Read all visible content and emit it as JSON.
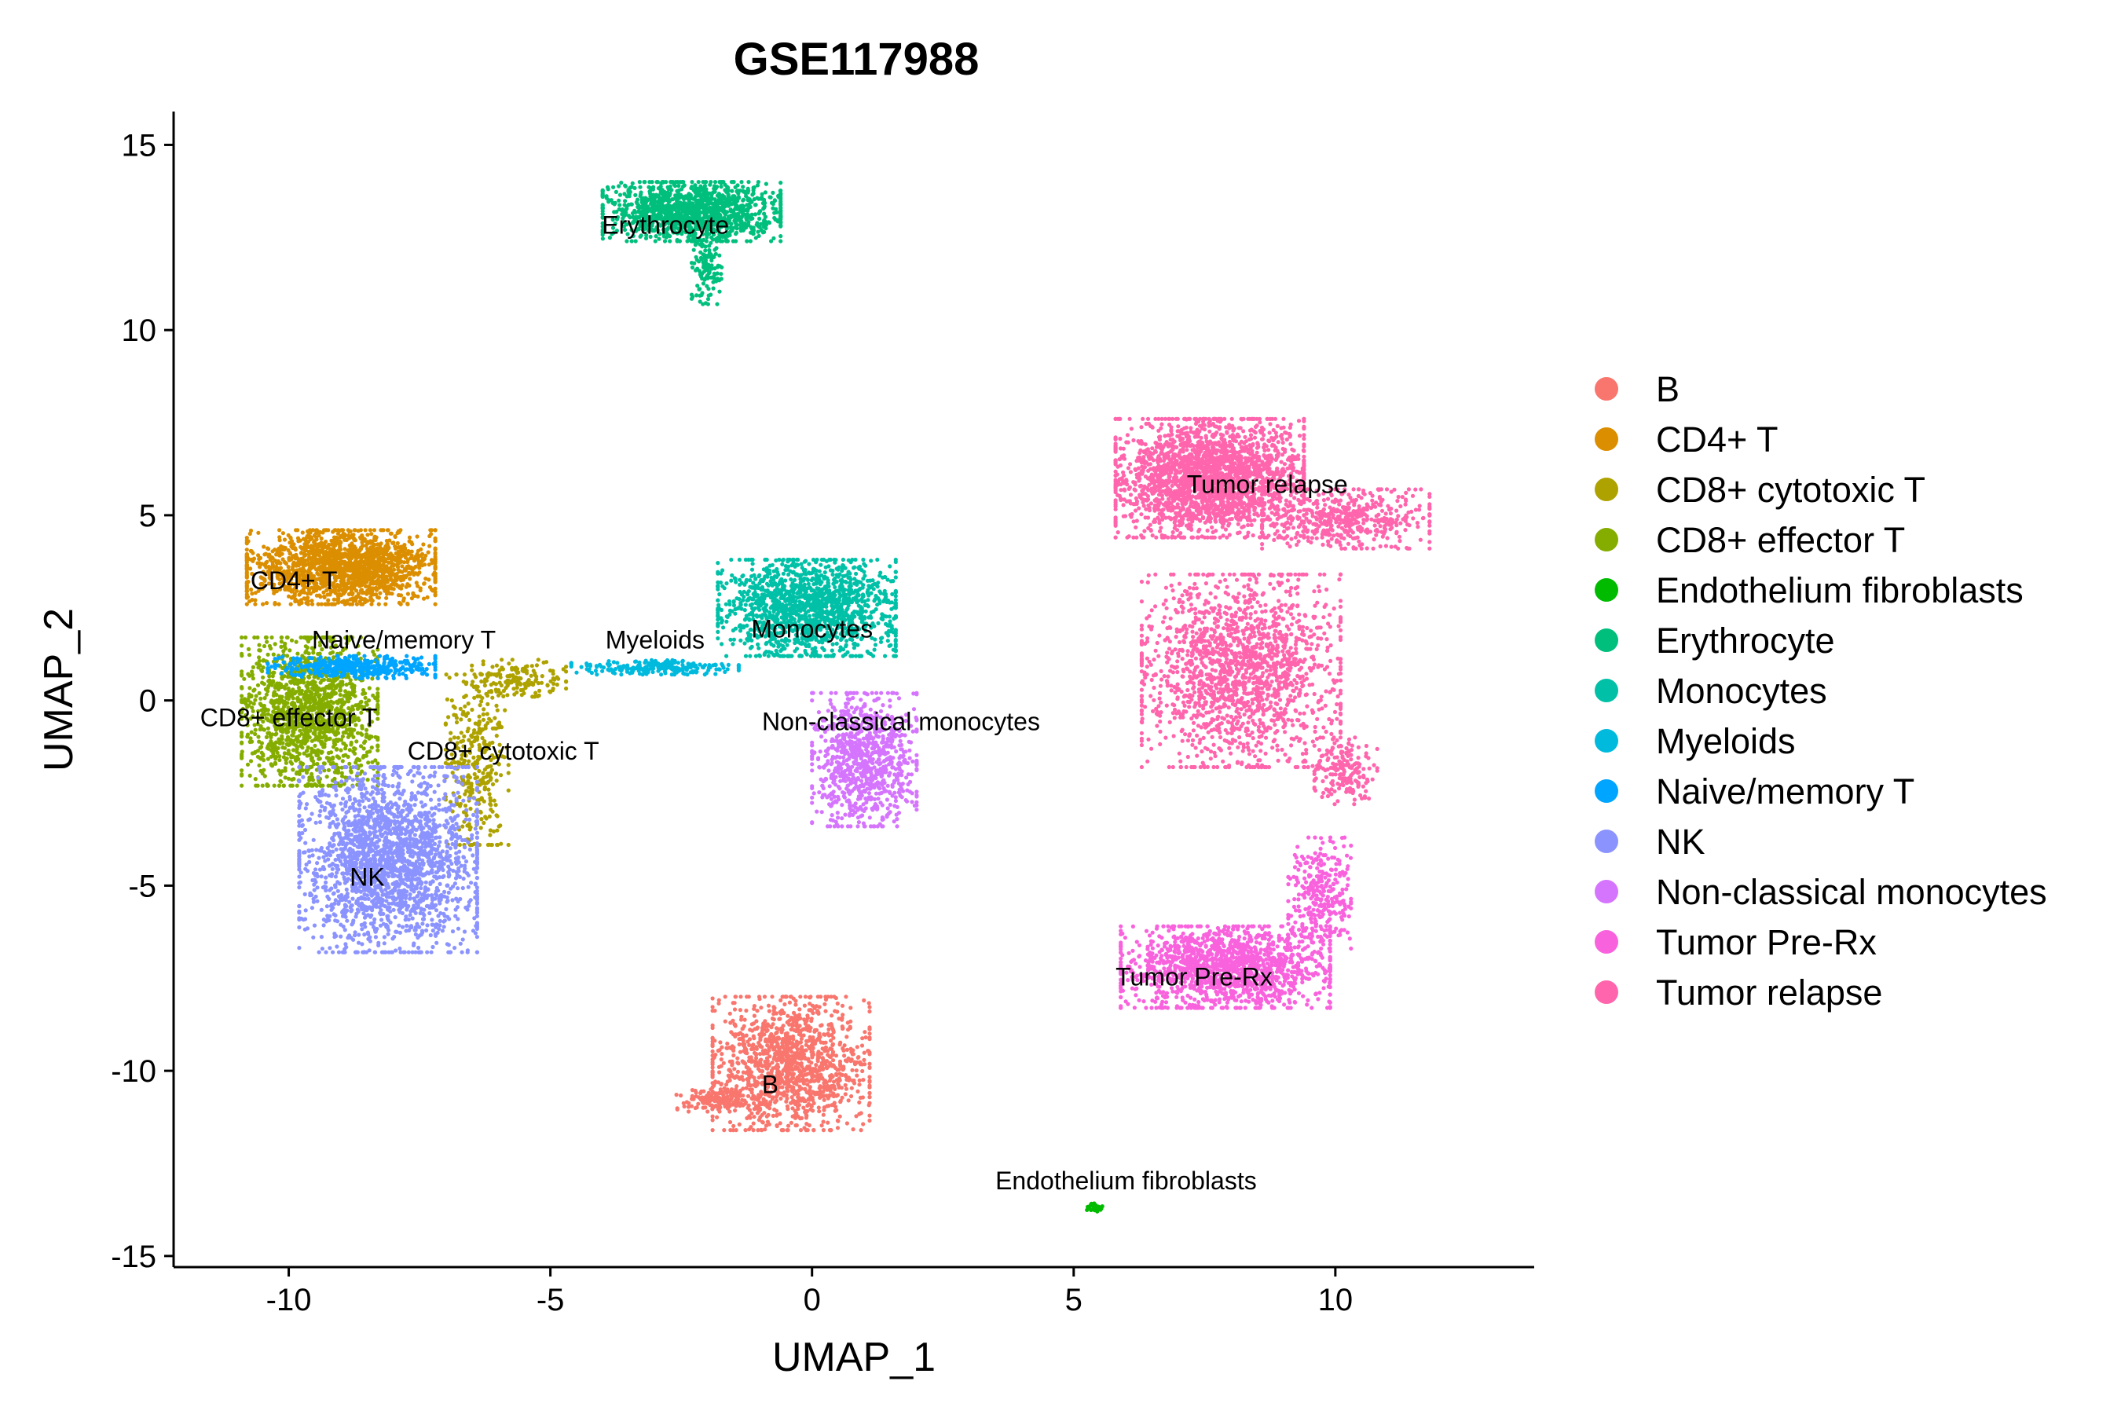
{
  "chart_data": {
    "type": "scatter",
    "title": "GSE117988",
    "xlabel": "UMAP_1",
    "ylabel": "UMAP_2",
    "xlim": [
      -12.2,
      13.8
    ],
    "ylim": [
      -15.3,
      15.9
    ],
    "x_ticks": [
      -10,
      -5,
      0,
      5,
      10
    ],
    "y_ticks": [
      15,
      10,
      5,
      0,
      -5,
      -10,
      -15
    ],
    "legend_position": "right",
    "clusters": [
      {
        "name": "B",
        "color": "#F8766D",
        "label_x": -0.8,
        "label_y": -10.6,
        "blobs": [
          {
            "cx": -0.4,
            "cy": -9.8,
            "rx": 1.5,
            "ry": 1.8,
            "n": 1300
          },
          {
            "cx": -1.8,
            "cy": -10.8,
            "rx": 0.8,
            "ry": 0.3,
            "n": 150
          }
        ]
      },
      {
        "name": "CD4+ T",
        "color": "#DB8E00",
        "label_x": -9.9,
        "label_y": 3.0,
        "blobs": [
          {
            "cx": -9.0,
            "cy": 3.6,
            "rx": 1.8,
            "ry": 1.0,
            "n": 1700
          }
        ]
      },
      {
        "name": "CD8+ cytotoxic T",
        "color": "#AEA200",
        "label_x": -5.9,
        "label_y": -1.6,
        "blobs": [
          {
            "cx": -6.4,
            "cy": -1.6,
            "rx": 0.6,
            "ry": 2.3,
            "n": 350
          },
          {
            "cx": -5.6,
            "cy": 0.6,
            "rx": 0.9,
            "ry": 0.5,
            "n": 150
          }
        ]
      },
      {
        "name": "CD8+ effector T",
        "color": "#85AD00",
        "label_x": -10.0,
        "label_y": -0.7,
        "blobs": [
          {
            "cx": -9.6,
            "cy": -0.3,
            "rx": 1.3,
            "ry": 2.0,
            "n": 1500
          }
        ]
      },
      {
        "name": "Endothelium fibroblasts",
        "color": "#00BB00",
        "label_x": 6.0,
        "label_y": -13.2,
        "blobs": [
          {
            "cx": 5.4,
            "cy": -13.7,
            "rx": 0.15,
            "ry": 0.12,
            "n": 40
          }
        ]
      },
      {
        "name": "Erythrocyte",
        "color": "#00BF7D",
        "label_x": -2.8,
        "label_y": 12.6,
        "blobs": [
          {
            "cx": -2.3,
            "cy": 13.2,
            "rx": 1.7,
            "ry": 0.8,
            "n": 1300
          },
          {
            "cx": -2.0,
            "cy": 11.6,
            "rx": 0.3,
            "ry": 0.9,
            "n": 120
          }
        ]
      },
      {
        "name": "Monocytes",
        "color": "#00C1A7",
        "label_x": 0.0,
        "label_y": 1.7,
        "blobs": [
          {
            "cx": -0.1,
            "cy": 2.5,
            "rx": 1.7,
            "ry": 1.3,
            "n": 1500
          }
        ]
      },
      {
        "name": "Myeloids",
        "color": "#00BADE",
        "label_x": -3.0,
        "label_y": 1.4,
        "blobs": [
          {
            "cx": -3.0,
            "cy": 0.9,
            "rx": 1.6,
            "ry": 0.2,
            "n": 220
          }
        ]
      },
      {
        "name": "Naive/memory T",
        "color": "#00A5FF",
        "label_x": -7.8,
        "label_y": 1.4,
        "blobs": [
          {
            "cx": -8.8,
            "cy": 0.9,
            "rx": 1.6,
            "ry": 0.3,
            "n": 420
          }
        ]
      },
      {
        "name": "NK",
        "color": "#8B93FF",
        "label_x": -8.5,
        "label_y": -5.0,
        "blobs": [
          {
            "cx": -8.1,
            "cy": -4.3,
            "rx": 1.7,
            "ry": 2.5,
            "n": 2200
          }
        ]
      },
      {
        "name": "Non-classical monocytes",
        "color": "#D575FE",
        "label_x": 1.7,
        "label_y": -0.8,
        "blobs": [
          {
            "cx": 1.0,
            "cy": -1.6,
            "rx": 1.0,
            "ry": 1.8,
            "n": 900
          }
        ]
      },
      {
        "name": "Tumor Pre-Rx",
        "color": "#F962DD",
        "label_x": 7.3,
        "label_y": -7.7,
        "blobs": [
          {
            "cx": 7.9,
            "cy": -7.2,
            "rx": 2.0,
            "ry": 1.1,
            "n": 1500
          },
          {
            "cx": 9.7,
            "cy": -5.2,
            "rx": 0.6,
            "ry": 1.5,
            "n": 300
          }
        ]
      },
      {
        "name": "Tumor relapse",
        "color": "#FF65AC",
        "label_x": 8.7,
        "label_y": 5.6,
        "blobs": [
          {
            "cx": 7.6,
            "cy": 6.0,
            "rx": 1.8,
            "ry": 1.6,
            "n": 2300
          },
          {
            "cx": 8.2,
            "cy": 0.8,
            "rx": 1.9,
            "ry": 2.6,
            "n": 1700
          },
          {
            "cx": 10.2,
            "cy": 4.9,
            "rx": 1.6,
            "ry": 0.8,
            "n": 500
          },
          {
            "cx": 10.2,
            "cy": -1.9,
            "rx": 0.6,
            "ry": 0.9,
            "n": 180
          }
        ]
      }
    ]
  }
}
